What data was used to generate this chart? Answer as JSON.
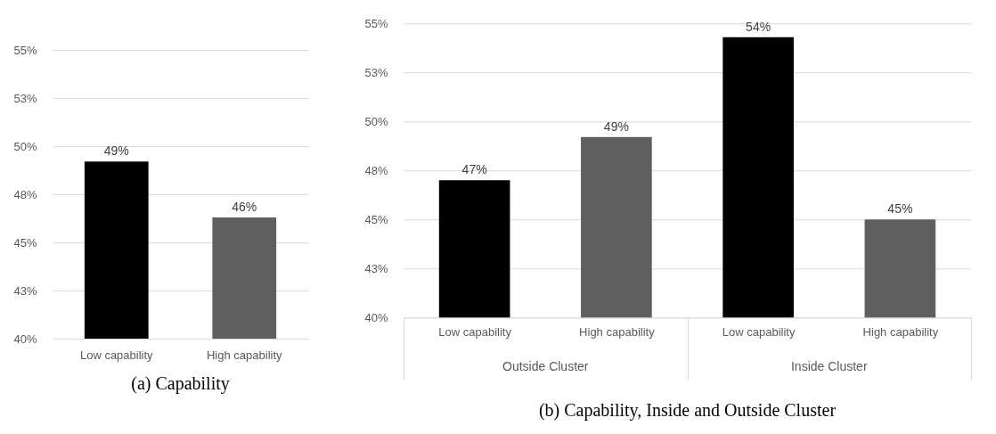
{
  "chart_data": [
    {
      "type": "bar",
      "title": "(a) Capability",
      "categories": [
        "Low capability",
        "High capability"
      ],
      "values": [
        49.2,
        46.3
      ],
      "colors": [
        "#000000",
        "#5f5f5f"
      ],
      "value_labels": [
        "49%",
        "46%"
      ],
      "ylim": [
        40,
        55
      ],
      "yticks": [
        {
          "value": 40,
          "label": "40%"
        },
        {
          "value": 42.5,
          "label": "43%"
        },
        {
          "value": 45,
          "label": "45%"
        },
        {
          "value": 47.5,
          "label": "48%"
        },
        {
          "value": 50,
          "label": "50%"
        },
        {
          "value": 52.5,
          "label": "53%"
        },
        {
          "value": 55,
          "label": "55%"
        }
      ],
      "grid": "y"
    },
    {
      "type": "bar",
      "title": "(b) Capability, Inside and Outside Cluster",
      "categories": [
        "Low capability",
        "High capability",
        "Low capability",
        "High capability"
      ],
      "values": [
        47.0,
        49.2,
        54.3,
        45.0
      ],
      "colors": [
        "#000000",
        "#5f5f5f",
        "#000000",
        "#5f5f5f"
      ],
      "value_labels": [
        "47%",
        "49%",
        "54%",
        "45%"
      ],
      "annotations": [
        "Outside Cluster",
        "Inside Cluster"
      ],
      "ylim": [
        40,
        55
      ],
      "yticks": [
        {
          "value": 40,
          "label": "40%"
        },
        {
          "value": 42.5,
          "label": "43%"
        },
        {
          "value": 45,
          "label": "45%"
        },
        {
          "value": 47.5,
          "label": "48%"
        },
        {
          "value": 50,
          "label": "50%"
        },
        {
          "value": 52.5,
          "label": "53%"
        },
        {
          "value": 55,
          "label": "55%"
        }
      ],
      "grid": "y"
    }
  ]
}
